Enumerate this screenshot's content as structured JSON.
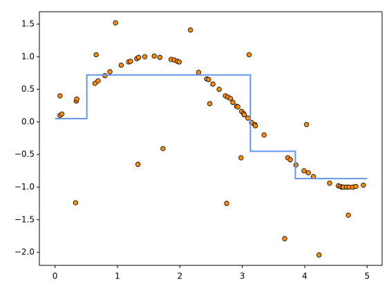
{
  "chart_data": {
    "type": "scatter",
    "xlim": [
      -0.25,
      5.24
    ],
    "ylim": [
      -2.2,
      1.69
    ],
    "xticks": [
      0,
      1,
      2,
      3,
      4,
      5
    ],
    "yticks": [
      {
        "value": -2.0,
        "label": "−2.0"
      },
      {
        "value": -1.5,
        "label": "−1.5"
      },
      {
        "value": -1.0,
        "label": "−1.0"
      },
      {
        "value": -0.5,
        "label": "−0.5"
      },
      {
        "value": 0.0,
        "label": "0.0"
      },
      0.5,
      {
        "value": 1.0,
        "label": "1.0"
      },
      1.5
    ],
    "series": [
      {
        "kind": "scatter",
        "color": "#ff8c00",
        "x": [
          0.08,
          0.08,
          0.11,
          0.34,
          0.35,
          0.33,
          0.64,
          0.69,
          0.66,
          0.8,
          0.88,
          0.97,
          1.06,
          1.18,
          1.21,
          1.31,
          1.34,
          1.33,
          1.44,
          1.59,
          1.68,
          1.73,
          1.86,
          1.91,
          1.96,
          1.99,
          2.17,
          2.3,
          2.43,
          2.46,
          2.48,
          2.53,
          2.63,
          2.73,
          2.77,
          2.81,
          2.75,
          2.85,
          2.91,
          2.93,
          2.99,
          3.02,
          3.03,
          2.98,
          3.09,
          3.11,
          3.15,
          3.2,
          3.21,
          3.35,
          3.68,
          3.73,
          3.77,
          3.86,
          3.99,
          4.03,
          4.06,
          4.14,
          4.23,
          4.4,
          4.54,
          4.57,
          4.6,
          4.62,
          4.67,
          4.71,
          4.77,
          4.7,
          4.82,
          4.94
        ],
        "values": [
          0.4,
          0.1,
          0.12,
          0.32,
          0.35,
          -1.24,
          0.59,
          0.63,
          1.03,
          0.71,
          0.77,
          1.52,
          0.87,
          0.92,
          0.93,
          0.97,
          0.99,
          -0.65,
          1.0,
          1.01,
          0.99,
          -0.41,
          0.96,
          0.95,
          0.93,
          0.92,
          1.41,
          0.76,
          0.66,
          0.65,
          0.28,
          0.58,
          0.5,
          0.4,
          0.38,
          0.36,
          -1.25,
          0.3,
          0.24,
          0.23,
          0.16,
          0.13,
          0.11,
          -0.55,
          0.06,
          1.03,
          -0.01,
          -0.04,
          -0.06,
          -0.2,
          -1.79,
          -0.55,
          -0.58,
          -0.66,
          -0.75,
          -0.04,
          -0.78,
          -0.84,
          -2.04,
          -0.94,
          -0.98,
          -0.99,
          -1.0,
          -1.0,
          -1.0,
          -1.0,
          -1.0,
          -1.43,
          -0.99,
          -0.97
        ]
      },
      {
        "kind": "line",
        "color": "#6495ed",
        "x": [
          0,
          0.51,
          0.51,
          3.13,
          3.13,
          3.85,
          3.85,
          5
        ],
        "values": [
          0.05,
          0.05,
          0.72,
          0.72,
          -0.45,
          -0.45,
          -0.87,
          -0.87
        ]
      }
    ]
  }
}
